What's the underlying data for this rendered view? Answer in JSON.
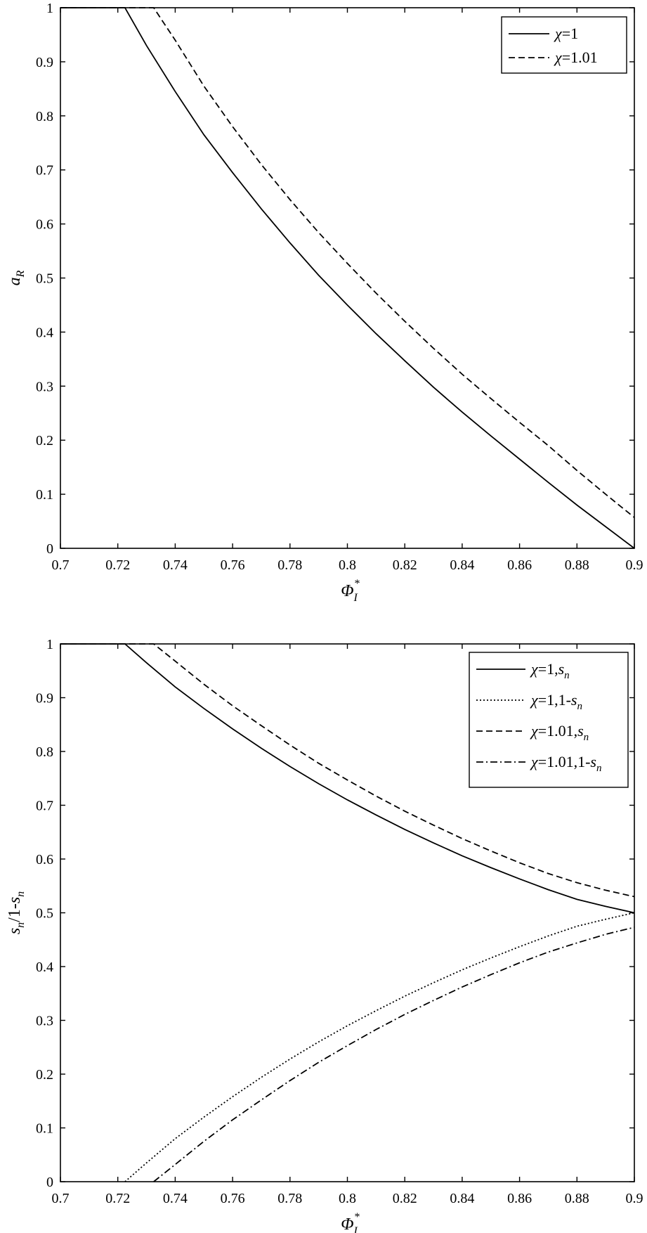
{
  "chart_data": [
    {
      "type": "line",
      "xlabel": {
        "main": "Φ",
        "sub": "I",
        "sup": "*"
      },
      "ylabel": {
        "main": "a",
        "sub": "R"
      },
      "xlim": [
        0.7,
        0.9
      ],
      "ylim": [
        0,
        1
      ],
      "x_ticks": [
        "0.7",
        "0.72",
        "0.74",
        "0.76",
        "0.78",
        "0.8",
        "0.82",
        "0.84",
        "0.86",
        "0.88",
        "0.9"
      ],
      "y_ticks": [
        "0",
        "0.1",
        "0.2",
        "0.3",
        "0.4",
        "0.5",
        "0.6",
        "0.7",
        "0.8",
        "0.9",
        "1"
      ],
      "legend_position": "top-right",
      "grid": false,
      "series": [
        {
          "name": "χ=1",
          "style": "solid",
          "x": [
            0.7,
            0.7225,
            0.73,
            0.74,
            0.75,
            0.76,
            0.77,
            0.78,
            0.79,
            0.8,
            0.81,
            0.82,
            0.83,
            0.84,
            0.85,
            0.86,
            0.87,
            0.88,
            0.89,
            0.9
          ],
          "y": [
            1.0,
            1.0,
            0.93,
            0.845,
            0.765,
            0.695,
            0.628,
            0.565,
            0.505,
            0.45,
            0.397,
            0.347,
            0.298,
            0.252,
            0.208,
            0.165,
            0.122,
            0.08,
            0.04,
            0.0
          ]
        },
        {
          "name": "χ=1.01",
          "style": "dashed",
          "x": [
            0.7,
            0.7325,
            0.74,
            0.75,
            0.76,
            0.77,
            0.78,
            0.79,
            0.8,
            0.81,
            0.82,
            0.83,
            0.84,
            0.85,
            0.86,
            0.87,
            0.88,
            0.89,
            0.9
          ],
          "y": [
            1.0,
            1.0,
            0.94,
            0.855,
            0.78,
            0.71,
            0.645,
            0.584,
            0.527,
            0.472,
            0.42,
            0.37,
            0.322,
            0.277,
            0.233,
            0.19,
            0.144,
            0.1,
            0.057
          ]
        }
      ]
    },
    {
      "type": "line",
      "xlabel": {
        "main": "Φ",
        "sub": "I",
        "sup": "*"
      },
      "ylabel": {
        "main": "s",
        "sub": "n",
        "rest": "/1-",
        "main2": "s",
        "sub2": "n"
      },
      "xlim": [
        0.7,
        0.9
      ],
      "ylim": [
        0,
        1
      ],
      "x_ticks": [
        "0.7",
        "0.72",
        "0.74",
        "0.76",
        "0.78",
        "0.8",
        "0.82",
        "0.84",
        "0.86",
        "0.88",
        "0.9"
      ],
      "y_ticks": [
        "0",
        "0.1",
        "0.2",
        "0.3",
        "0.4",
        "0.5",
        "0.6",
        "0.7",
        "0.8",
        "0.9",
        "1"
      ],
      "legend_position": "top-right",
      "grid": false,
      "series": [
        {
          "name": "χ=1,s",
          "name_sub": "n",
          "style": "solid",
          "x": [
            0.7,
            0.7225,
            0.73,
            0.74,
            0.75,
            0.76,
            0.77,
            0.78,
            0.79,
            0.8,
            0.81,
            0.82,
            0.83,
            0.84,
            0.85,
            0.86,
            0.87,
            0.88,
            0.89,
            0.9
          ],
          "y": [
            1.0,
            1.0,
            0.965,
            0.92,
            0.88,
            0.842,
            0.806,
            0.772,
            0.74,
            0.71,
            0.682,
            0.655,
            0.63,
            0.606,
            0.584,
            0.563,
            0.543,
            0.525,
            0.512,
            0.5
          ]
        },
        {
          "name": "χ=1,1-s",
          "name_sub": "n",
          "style": "dotted",
          "x": [
            0.7225,
            0.73,
            0.74,
            0.75,
            0.76,
            0.77,
            0.78,
            0.79,
            0.8,
            0.81,
            0.82,
            0.83,
            0.84,
            0.85,
            0.86,
            0.87,
            0.88,
            0.89,
            0.9
          ],
          "y": [
            0.0,
            0.035,
            0.08,
            0.12,
            0.158,
            0.194,
            0.228,
            0.26,
            0.29,
            0.318,
            0.345,
            0.37,
            0.394,
            0.416,
            0.437,
            0.457,
            0.475,
            0.488,
            0.5
          ]
        },
        {
          "name": "χ=1.01,s",
          "name_sub": "n",
          "style": "dashed",
          "x": [
            0.7,
            0.7325,
            0.74,
            0.75,
            0.76,
            0.77,
            0.78,
            0.79,
            0.8,
            0.81,
            0.82,
            0.83,
            0.84,
            0.85,
            0.86,
            0.87,
            0.88,
            0.89,
            0.9
          ],
          "y": [
            1.0,
            1.0,
            0.968,
            0.925,
            0.885,
            0.848,
            0.812,
            0.778,
            0.747,
            0.717,
            0.689,
            0.663,
            0.638,
            0.615,
            0.593,
            0.573,
            0.556,
            0.542,
            0.53
          ]
        },
        {
          "name": "χ=1.01,1-s",
          "name_sub": "n",
          "style": "dashdot",
          "x": [
            0.7325,
            0.74,
            0.75,
            0.76,
            0.77,
            0.78,
            0.79,
            0.8,
            0.81,
            0.82,
            0.83,
            0.84,
            0.85,
            0.86,
            0.87,
            0.88,
            0.89,
            0.9
          ],
          "y": [
            0.0,
            0.032,
            0.075,
            0.115,
            0.152,
            0.188,
            0.222,
            0.253,
            0.283,
            0.311,
            0.337,
            0.362,
            0.385,
            0.407,
            0.427,
            0.444,
            0.46,
            0.473
          ]
        }
      ]
    }
  ]
}
